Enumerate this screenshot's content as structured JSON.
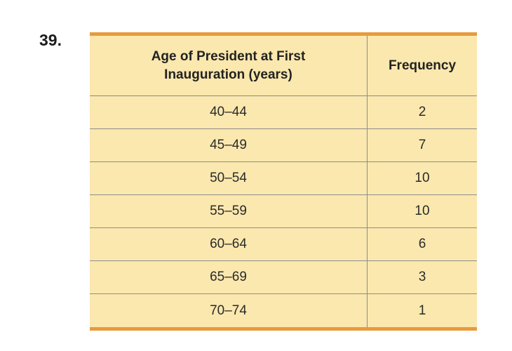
{
  "problem": {
    "number": "39."
  },
  "table": {
    "header": {
      "col1_line1": "Age of President at First",
      "col1_line2": "Inauguration (years)",
      "col2": "Frequency"
    },
    "rows": [
      {
        "range": "40–44",
        "frequency": "2"
      },
      {
        "range": "45–49",
        "frequency": "7"
      },
      {
        "range": "50–54",
        "frequency": "10"
      },
      {
        "range": "55–59",
        "frequency": "10"
      },
      {
        "range": "60–64",
        "frequency": "6"
      },
      {
        "range": "65–69",
        "frequency": "3"
      },
      {
        "range": "70–74",
        "frequency": "1"
      }
    ]
  },
  "colors": {
    "table_background": "#FBE8AE",
    "accent_border": "#E79B3C",
    "grid_line": "#8C8C8C",
    "text": "#2a2a2a"
  },
  "chart_data": {
    "type": "table",
    "title": "Age of President at First Inauguration (years)",
    "columns": [
      "Age of President at First Inauguration (years)",
      "Frequency"
    ],
    "categories": [
      "40–44",
      "45–49",
      "50–54",
      "55–59",
      "60–64",
      "65–69",
      "70–74"
    ],
    "values": [
      2,
      7,
      10,
      10,
      6,
      3,
      1
    ]
  }
}
